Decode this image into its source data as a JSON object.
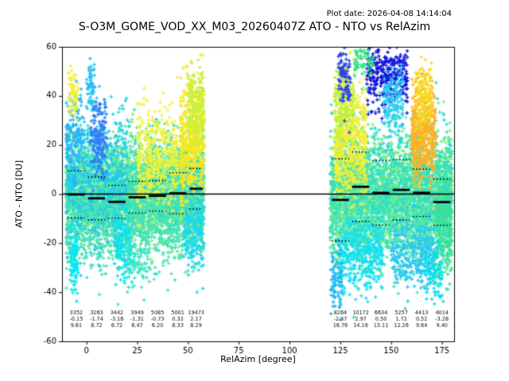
{
  "header": {
    "title": "S-O3M_GOME_VOD_XX_M03_20260407Z ATO - NTO vs RelAzim",
    "plot_date": "Plot date: 2026-04-08 14:14:04"
  },
  "chart_data": {
    "type": "scatter",
    "title": "S-O3M_GOME_VOD_XX_M03_20260407Z ATO - NTO vs RelAzim",
    "plot_date": "Plot date: 2026-04-08 14:14:04",
    "xlabel": "RelAzim [degree]",
    "ylabel": "ATO - NTO [DU]",
    "xlim": [
      -12,
      181
    ],
    "ylim": [
      -60,
      60
    ],
    "xticks": [
      0,
      25,
      50,
      75,
      100,
      125,
      150,
      175
    ],
    "yticks": [
      -60,
      -40,
      -20,
      0,
      20,
      40,
      60
    ],
    "grid": false,
    "legend": "none",
    "zero_line_y": 0,
    "marker": "plus",
    "bins_left": {
      "edges": [
        -10,
        0,
        10,
        20,
        30,
        40,
        50,
        58
      ],
      "count": [
        3352,
        3263,
        3442,
        3949,
        5085,
        5001,
        19473
      ],
      "mean": [
        -0.15,
        -1.74,
        -3.16,
        -1.31,
        -0.73,
        0.32,
        2.17
      ],
      "std": [
        9.61,
        8.72,
        6.72,
        6.47,
        6.2,
        8.33,
        8.29
      ]
    },
    "bins_right": {
      "edges": [
        120,
        130,
        140,
        150,
        160,
        170,
        180
      ],
      "count": [
        8264,
        10172,
        6634,
        5257,
        4413,
        4014
      ],
      "mean": [
        -2.37,
        2.97,
        0.5,
        1.72,
        0.52,
        -3.28
      ],
      "std": [
        16.76,
        14.16,
        13.11,
        12.26,
        9.64,
        9.4
      ]
    },
    "overlay_lines": {
      "solid_thick": "bin mean",
      "dotted": "bin mean plus/minus std",
      "horizontal": "y = 0 across full axis"
    },
    "clusters": [
      [
        -10,
        58,
        2,
        9,
        2400,
        "#7dec86"
      ],
      [
        -10,
        58,
        -4,
        10,
        1700,
        "#4ce6a8"
      ],
      [
        -10,
        58,
        3,
        13,
        950,
        "#2fdccb"
      ],
      [
        -10,
        58,
        -15,
        8,
        450,
        "#50e0b0"
      ],
      [
        -10,
        20,
        8,
        14,
        480,
        "#22c8f0"
      ],
      [
        -10,
        -2,
        25,
        9,
        140,
        "#26b4f5"
      ],
      [
        -8,
        -4,
        -27,
        6,
        90,
        "#00e8f0"
      ],
      [
        2,
        10,
        22,
        8,
        160,
        "#2f7df5"
      ],
      [
        0,
        4,
        44,
        5,
        50,
        "#24c2f0"
      ],
      [
        14,
        22,
        -20,
        7,
        160,
        "#10e0e8"
      ],
      [
        20,
        30,
        -28,
        6,
        80,
        "#3ae6c8"
      ],
      [
        25,
        45,
        15,
        10,
        420,
        "#eef23a"
      ],
      [
        -9,
        -4,
        41,
        5,
        60,
        "#f0f03a"
      ],
      [
        46,
        58,
        18,
        13,
        650,
        "#f6e825"
      ],
      [
        50,
        58,
        35,
        8,
        190,
        "#c8f03c"
      ],
      [
        48,
        58,
        -12,
        10,
        240,
        "#19d8f0"
      ],
      [
        120,
        180,
        0,
        11,
        2400,
        "#7dec86"
      ],
      [
        120,
        180,
        -8,
        11,
        1500,
        "#4ce6a8"
      ],
      [
        120,
        180,
        5,
        13,
        850,
        "#2fdccb"
      ],
      [
        122,
        138,
        20,
        11,
        480,
        "#f2ef30"
      ],
      [
        122,
        132,
        38,
        8,
        190,
        "#bef03c"
      ],
      [
        124,
        130,
        48,
        6,
        90,
        "#2f44e0"
      ],
      [
        138,
        158,
        48,
        6,
        320,
        "#1414dd"
      ],
      [
        146,
        156,
        38,
        6,
        150,
        "#2fd0f0"
      ],
      [
        160,
        172,
        25,
        10,
        430,
        "#ffb020"
      ],
      [
        162,
        170,
        40,
        7,
        150,
        "#f6d820"
      ],
      [
        125,
        146,
        -24,
        8,
        380,
        "#17dff0"
      ],
      [
        150,
        172,
        -24,
        8,
        330,
        "#2bc8f0"
      ],
      [
        172,
        180,
        -10,
        12,
        280,
        "#3adf9f"
      ],
      [
        132,
        142,
        55,
        4,
        60,
        "#30e080"
      ],
      [
        120,
        126,
        -35,
        6,
        80,
        "#1ab8f0"
      ],
      [
        166,
        176,
        -33,
        5,
        70,
        "#00e0f0"
      ]
    ],
    "colors": {
      "axis": "#000000",
      "stats_text": "#000000",
      "overlay": "#000000"
    }
  }
}
